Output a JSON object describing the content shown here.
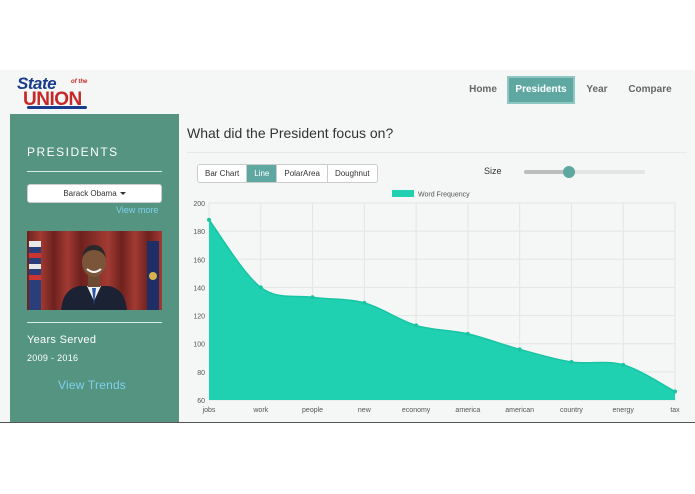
{
  "logo": {
    "line1": "State",
    "line1_small": "of the",
    "line2": "UNION"
  },
  "nav": {
    "home": "Home",
    "presidents": "Presidents",
    "year": "Year",
    "compare": "Compare"
  },
  "sidebar": {
    "title": "PRESIDENTS",
    "selected_president": "Barack Obama",
    "view_more": "View more",
    "years_label": "Years Served",
    "years_value": "2009 - 2016",
    "view_trends": "View Trends"
  },
  "main": {
    "title": "What did the President focus on?",
    "chart_types": [
      "Bar Chart",
      "Line",
      "PolarArea",
      "Doughnut"
    ],
    "active_chart_type": "Line",
    "size_label": "Size",
    "size_value": 0.37
  },
  "colors": {
    "accent": "#5fa8a2",
    "sidebar": "#549481",
    "area_fill": "#1fd1b0",
    "link": "#7fd0ee"
  },
  "chart_data": {
    "type": "area",
    "categories": [
      "jobs",
      "work",
      "people",
      "new",
      "economy",
      "america",
      "american",
      "country",
      "energy",
      "tax"
    ],
    "series": [
      {
        "name": "Word Frequency",
        "values": [
          188,
          140,
          133,
          129,
          113,
          107,
          96,
          87,
          85,
          66
        ]
      }
    ],
    "ylim": [
      60,
      200
    ],
    "yticks": [
      60,
      80,
      100,
      120,
      140,
      160,
      180,
      200
    ],
    "grid": true,
    "legend": "top-center"
  }
}
